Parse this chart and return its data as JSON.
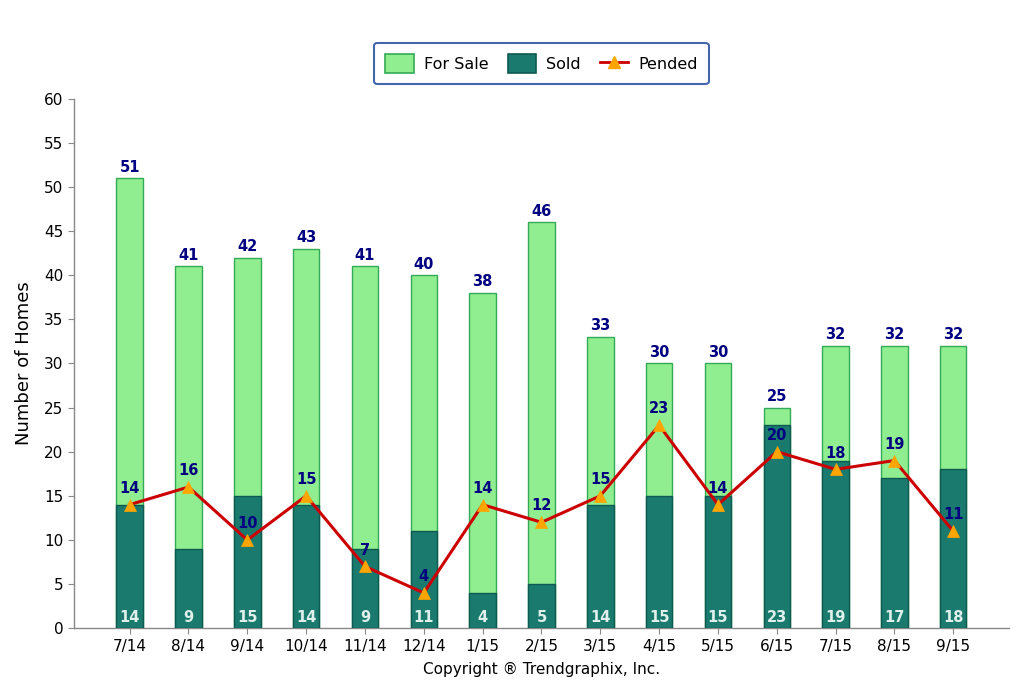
{
  "categories": [
    "7/14",
    "8/14",
    "9/14",
    "10/14",
    "11/14",
    "12/14",
    "1/15",
    "2/15",
    "3/15",
    "4/15",
    "5/15",
    "6/15",
    "7/15",
    "8/15",
    "9/15"
  ],
  "for_sale": [
    51,
    41,
    42,
    43,
    41,
    40,
    38,
    46,
    33,
    30,
    30,
    25,
    32,
    32,
    32
  ],
  "sold": [
    14,
    9,
    15,
    14,
    9,
    11,
    4,
    5,
    14,
    15,
    15,
    23,
    19,
    17,
    18
  ],
  "pended": [
    14,
    16,
    10,
    15,
    7,
    4,
    14,
    12,
    15,
    23,
    14,
    20,
    18,
    19,
    11
  ],
  "for_sale_color": "#90EE90",
  "for_sale_edge": "#33aa55",
  "sold_color": "#1a7a6e",
  "sold_edge": "#0f5a50",
  "pended_color": "#cc0000",
  "pended_marker_color": "#FFA500",
  "ylabel": "Number of Homes",
  "xlabel": "Copyright ® Trendgraphix, Inc.",
  "ylim": [
    0,
    60
  ],
  "yticks": [
    0,
    5,
    10,
    15,
    20,
    25,
    30,
    35,
    40,
    45,
    50,
    55,
    60
  ],
  "legend_for_sale": "For Sale",
  "legend_sold": "Sold",
  "legend_pended": "Pended",
  "for_sale_bar_width": 0.45,
  "sold_bar_width": 0.45,
  "figure_bg": "#ffffff",
  "axes_bg": "#ffffff",
  "border_color": "#888888",
  "label_color_dark": "#000080",
  "label_color_light": "#e0f0ec",
  "pended_label_color": "#000080"
}
